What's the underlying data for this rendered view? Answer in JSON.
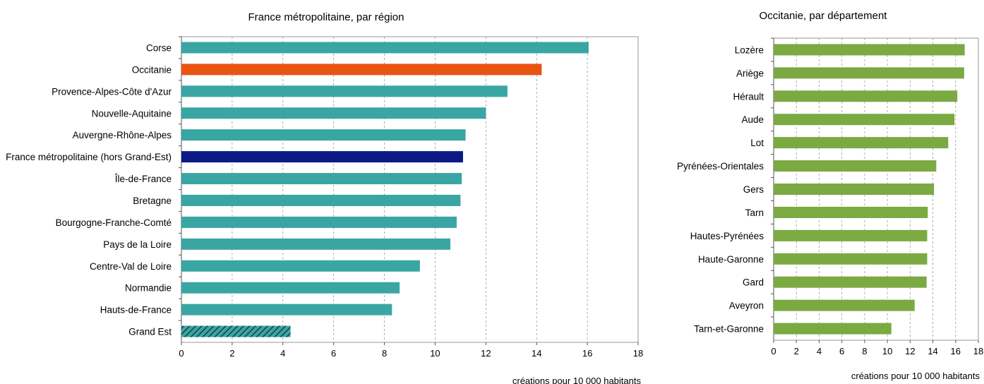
{
  "chart_data": [
    {
      "type": "bar",
      "orientation": "horizontal",
      "title": "France métropolitaine, par région",
      "xlabel": "créations pour 10 000 habitants",
      "xlim": [
        0,
        18
      ],
      "xticks": [
        0,
        2,
        4,
        6,
        8,
        10,
        12,
        14,
        16,
        18
      ],
      "grid": "vertical-dashed",
      "categories": [
        "Corse",
        "Occitanie",
        "Provence-Alpes-Côte d'Azur",
        "Nouvelle-Aquitaine",
        "Auvergne-Rhône-Alpes",
        "France métropolitaine (hors Grand-Est)",
        "Île-de-France",
        "Bretagne",
        "Bourgogne-Franche-Comté",
        "Pays de la Loire",
        "Centre-Val de Loire",
        "Normandie",
        "Hauts-de-France",
        "Grand Est"
      ],
      "values": [
        16.05,
        14.2,
        12.85,
        12.0,
        11.2,
        11.1,
        11.05,
        11.0,
        10.85,
        10.6,
        9.4,
        8.6,
        8.3,
        4.3
      ],
      "colors": [
        "#3aa6a3",
        "#ea5412",
        "#3aa6a3",
        "#3aa6a3",
        "#3aa6a3",
        "#0b1a86",
        "#3aa6a3",
        "#3aa6a3",
        "#3aa6a3",
        "#3aa6a3",
        "#3aa6a3",
        "#3aa6a3",
        "#3aa6a3",
        "#3aa6a3"
      ],
      "hatched": [
        "Grand Est"
      ]
    },
    {
      "type": "bar",
      "orientation": "horizontal",
      "title": "Occitanie, par département",
      "xlabel": "créations pour 10 000 habitants",
      "xlim": [
        0,
        18
      ],
      "xticks": [
        0,
        2,
        4,
        6,
        8,
        10,
        12,
        14,
        16,
        18
      ],
      "grid": "vertical-dashed",
      "categories": [
        "Lozère",
        "Ariège",
        "Hérault",
        "Aude",
        "Lot",
        "Pyrénées-Orientales",
        "Gers",
        "Tarn",
        "Hautes-Pyrénées",
        "Haute-Garonne",
        "Gard",
        "Aveyron",
        "Tarn-et-Garonne"
      ],
      "values": [
        16.8,
        16.75,
        16.15,
        15.9,
        15.35,
        14.3,
        14.1,
        13.55,
        13.5,
        13.5,
        13.45,
        12.4,
        10.35
      ],
      "colors": [
        "#7ba942",
        "#7ba942",
        "#7ba942",
        "#7ba942",
        "#7ba942",
        "#7ba942",
        "#7ba942",
        "#7ba942",
        "#7ba942",
        "#7ba942",
        "#7ba942",
        "#7ba942",
        "#7ba942"
      ],
      "hatched": []
    }
  ]
}
